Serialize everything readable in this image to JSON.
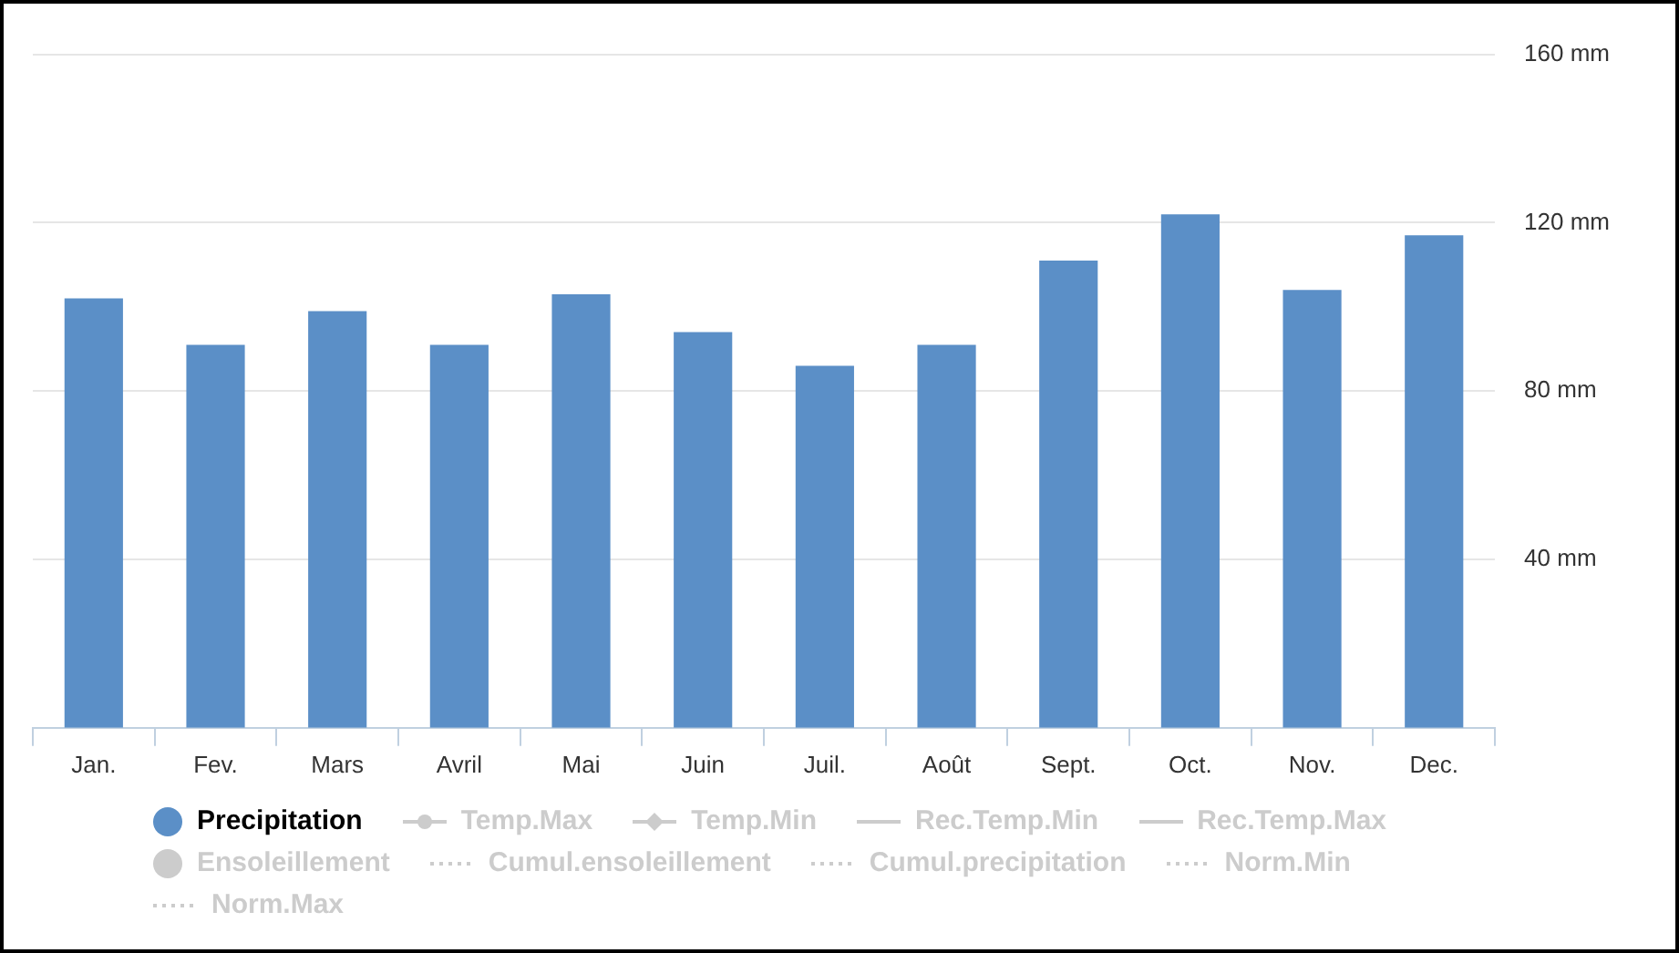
{
  "chart_data": {
    "type": "bar",
    "categories": [
      "Jan.",
      "Fev.",
      "Mars",
      "Avril",
      "Mai",
      "Juin",
      "Juil.",
      "Août",
      "Sept.",
      "Oct.",
      "Nov.",
      "Dec."
    ],
    "series": [
      {
        "name": "Precipitation",
        "color": "#5b8fc7",
        "values": [
          102,
          91,
          99,
          91,
          103,
          94,
          86,
          91,
          111,
          122,
          104,
          117
        ]
      },
      {
        "name": "Temp.Max",
        "color": "#cccccc",
        "type": "line",
        "marker": "circle",
        "line_style": "solid",
        "values": [
          null,
          null,
          null,
          null,
          null,
          null,
          null,
          null,
          null,
          null,
          null,
          null
        ]
      },
      {
        "name": "Temp.Min",
        "color": "#cccccc",
        "type": "line",
        "marker": "diamond",
        "line_style": "solid",
        "values": [
          null,
          null,
          null,
          null,
          null,
          null,
          null,
          null,
          null,
          null,
          null,
          null
        ]
      },
      {
        "name": "Rec.Temp.Min",
        "color": "#cccccc",
        "type": "line",
        "line_style": "solid",
        "values": [
          null,
          null,
          null,
          null,
          null,
          null,
          null,
          null,
          null,
          null,
          null,
          null
        ]
      },
      {
        "name": "Rec.Temp.Max",
        "color": "#cccccc",
        "type": "line",
        "line_style": "solid",
        "values": [
          null,
          null,
          null,
          null,
          null,
          null,
          null,
          null,
          null,
          null,
          null,
          null
        ]
      },
      {
        "name": "Ensoleillement",
        "color": "#cccccc",
        "type": "bar",
        "values": [
          null,
          null,
          null,
          null,
          null,
          null,
          null,
          null,
          null,
          null,
          null,
          null
        ]
      },
      {
        "name": "Cumul.ensoleillement",
        "color": "#cccccc",
        "type": "line",
        "line_style": "dotted",
        "values": [
          null,
          null,
          null,
          null,
          null,
          null,
          null,
          null,
          null,
          null,
          null,
          null
        ]
      },
      {
        "name": "Cumul.precipitation",
        "color": "#cccccc",
        "type": "line",
        "line_style": "dotted",
        "values": [
          null,
          null,
          null,
          null,
          null,
          null,
          null,
          null,
          null,
          null,
          null,
          null
        ]
      },
      {
        "name": "Norm.Min",
        "color": "#cccccc",
        "type": "line",
        "line_style": "dotted",
        "values": [
          null,
          null,
          null,
          null,
          null,
          null,
          null,
          null,
          null,
          null,
          null,
          null
        ]
      },
      {
        "name": "Norm.Max",
        "color": "#cccccc",
        "type": "line",
        "line_style": "dotted",
        "values": [
          null,
          null,
          null,
          null,
          null,
          null,
          null,
          null,
          null,
          null,
          null,
          null
        ]
      }
    ],
    "ylim": [
      0,
      160
    ],
    "yticks": [
      {
        "value": 40,
        "label": "40 mm"
      },
      {
        "value": 80,
        "label": "80 mm"
      },
      {
        "value": 120,
        "label": "120 mm"
      },
      {
        "value": 160,
        "label": "160 mm"
      }
    ],
    "grid": "y",
    "legend": "bottom"
  }
}
